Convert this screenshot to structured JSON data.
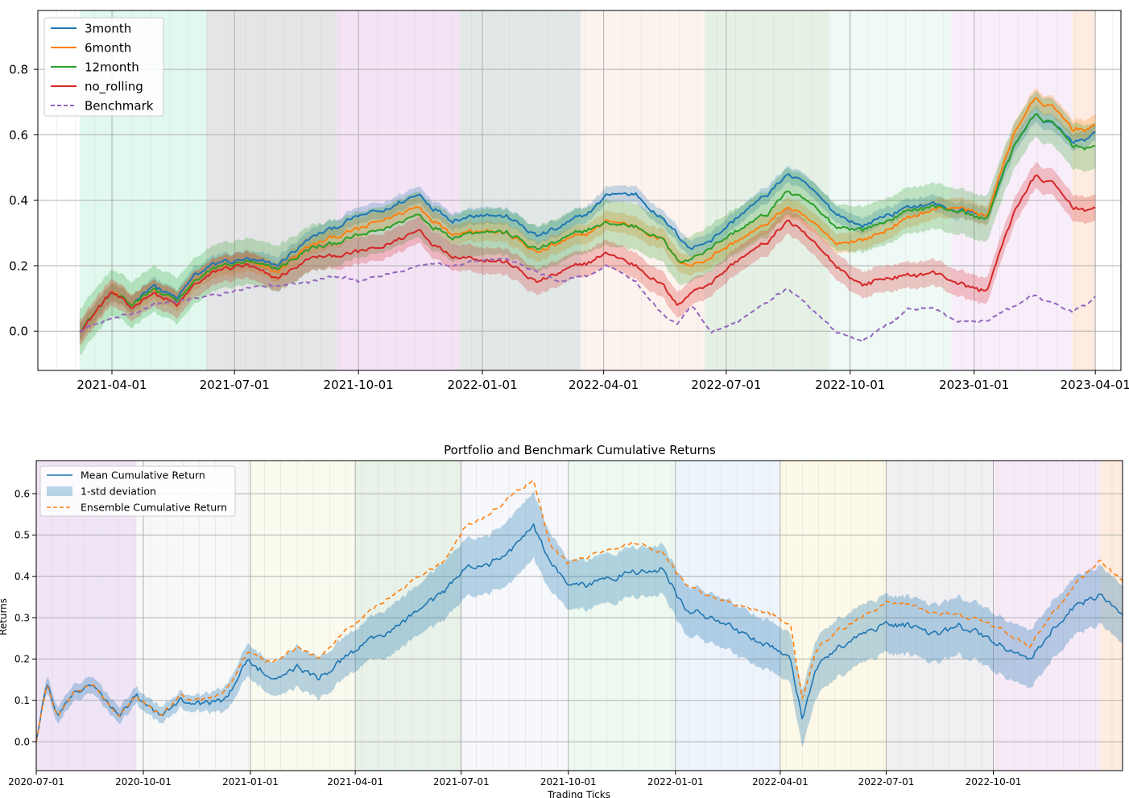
{
  "chart_data": [
    {
      "type": "line",
      "title": "",
      "xlabel": "",
      "ylabel": "",
      "x_range": [
        "2021-02-05",
        "2023-04-20"
      ],
      "ylim": [
        -0.12,
        0.98
      ],
      "x_ticks": [
        "2021-04-01",
        "2021-07-01",
        "2021-10-01",
        "2022-01-01",
        "2022-04-01",
        "2022-07-01",
        "2022-10-01",
        "2023-01-01",
        "2023-04-01"
      ],
      "y_ticks": [
        0.0,
        0.2,
        0.4,
        0.6,
        0.8
      ],
      "y_tick_labels": [
        "0.0",
        "0.2",
        "0.4",
        "0.6",
        "0.8"
      ],
      "grid": true,
      "legend_position": "top-left",
      "x_anchor_dates": [
        "2021-03-08",
        "2021-04-01",
        "2021-04-15",
        "2021-05-01",
        "2021-05-20",
        "2021-06-01",
        "2021-06-20",
        "2021-07-10",
        "2021-08-01",
        "2021-08-25",
        "2021-09-15",
        "2021-10-01",
        "2021-10-20",
        "2021-11-15",
        "2021-11-25",
        "2021-12-10",
        "2022-01-01",
        "2022-01-20",
        "2022-02-10",
        "2022-03-01",
        "2022-03-20",
        "2022-04-05",
        "2022-04-25",
        "2022-05-15",
        "2022-05-25",
        "2022-06-05",
        "2022-06-20",
        "2022-07-10",
        "2022-08-01",
        "2022-08-15",
        "2022-09-01",
        "2022-09-20",
        "2022-10-10",
        "2022-10-25",
        "2022-11-15",
        "2022-12-01",
        "2022-12-20",
        "2023-01-10",
        "2023-02-01",
        "2023-02-15",
        "2023-03-01",
        "2023-03-15",
        "2023-04-01"
      ],
      "series": [
        {
          "name": "3month",
          "color": "#1f77b4",
          "dashed": false,
          "band": 0.025,
          "values": [
            0.0,
            0.12,
            0.08,
            0.14,
            0.1,
            0.17,
            0.21,
            0.22,
            0.2,
            0.28,
            0.32,
            0.35,
            0.37,
            0.42,
            0.38,
            0.34,
            0.36,
            0.35,
            0.29,
            0.32,
            0.36,
            0.42,
            0.42,
            0.34,
            0.3,
            0.25,
            0.28,
            0.35,
            0.42,
            0.48,
            0.44,
            0.36,
            0.32,
            0.35,
            0.38,
            0.39,
            0.37,
            0.35,
            0.58,
            0.66,
            0.63,
            0.58,
            0.6
          ]
        },
        {
          "name": "6month",
          "color": "#ff7f0e",
          "dashed": false,
          "band": 0.03,
          "values": [
            0.0,
            0.12,
            0.08,
            0.13,
            0.09,
            0.15,
            0.2,
            0.21,
            0.18,
            0.26,
            0.29,
            0.31,
            0.34,
            0.38,
            0.34,
            0.3,
            0.31,
            0.3,
            0.24,
            0.27,
            0.3,
            0.34,
            0.32,
            0.28,
            0.22,
            0.2,
            0.23,
            0.28,
            0.33,
            0.38,
            0.34,
            0.27,
            0.28,
            0.3,
            0.35,
            0.37,
            0.38,
            0.35,
            0.62,
            0.71,
            0.68,
            0.62,
            0.62
          ]
        },
        {
          "name": "12month",
          "color": "#2ca02c",
          "dashed": false,
          "band": 0.07,
          "values": [
            0.0,
            0.12,
            0.08,
            0.13,
            0.09,
            0.15,
            0.2,
            0.21,
            0.19,
            0.25,
            0.27,
            0.29,
            0.31,
            0.36,
            0.32,
            0.29,
            0.31,
            0.3,
            0.25,
            0.28,
            0.31,
            0.33,
            0.32,
            0.28,
            0.22,
            0.22,
            0.26,
            0.31,
            0.36,
            0.43,
            0.39,
            0.32,
            0.31,
            0.33,
            0.37,
            0.38,
            0.37,
            0.34,
            0.58,
            0.66,
            0.63,
            0.57,
            0.56
          ]
        },
        {
          "name": "no_rolling",
          "color": "#d62728",
          "dashed": false,
          "band": 0.04,
          "values": [
            0.0,
            0.12,
            0.07,
            0.12,
            0.08,
            0.14,
            0.19,
            0.2,
            0.16,
            0.22,
            0.23,
            0.24,
            0.26,
            0.31,
            0.27,
            0.23,
            0.22,
            0.21,
            0.15,
            0.18,
            0.21,
            0.24,
            0.2,
            0.14,
            0.08,
            0.12,
            0.15,
            0.22,
            0.27,
            0.34,
            0.28,
            0.2,
            0.14,
            0.16,
            0.17,
            0.18,
            0.15,
            0.12,
            0.38,
            0.47,
            0.45,
            0.38,
            0.37
          ]
        },
        {
          "name": "Benchmark",
          "color": "#9467bd",
          "dashed": true,
          "band": 0,
          "values": [
            0.0,
            0.04,
            0.05,
            0.08,
            0.09,
            0.1,
            0.11,
            0.13,
            0.14,
            0.15,
            0.17,
            0.15,
            0.17,
            0.2,
            0.21,
            0.2,
            0.22,
            0.22,
            0.18,
            0.15,
            0.17,
            0.2,
            0.15,
            0.05,
            0.02,
            0.08,
            0.0,
            0.03,
            0.09,
            0.13,
            0.07,
            0.0,
            -0.03,
            0.01,
            0.07,
            0.07,
            0.03,
            0.03,
            0.08,
            0.11,
            0.08,
            0.06,
            0.1
          ]
        }
      ]
    },
    {
      "type": "line",
      "title": "Portfolio and Benchmark Cumulative Returns",
      "xlabel": "Trading Ticks",
      "ylabel": "Returns",
      "x_range": [
        "2020-07-01",
        "2023-01-20"
      ],
      "ylim": [
        -0.07,
        0.68
      ],
      "x_ticks": [
        "2020-07-01",
        "2020-10-01",
        "2021-01-01",
        "2021-04-01",
        "2021-07-01",
        "2021-10-01",
        "2022-01-01",
        "2022-04-01",
        "2022-07-01",
        "2022-10-01"
      ],
      "y_ticks": [
        0.0,
        0.1,
        0.2,
        0.3,
        0.4,
        0.5,
        0.6
      ],
      "y_tick_labels": [
        "0.0",
        "0.1",
        "0.2",
        "0.3",
        "0.4",
        "0.5",
        "0.6"
      ],
      "grid": true,
      "legend_position": "top-left",
      "x_anchor_dates": [
        "2020-07-01",
        "2020-07-10",
        "2020-07-20",
        "2020-08-01",
        "2020-08-20",
        "2020-09-10",
        "2020-09-25",
        "2020-10-15",
        "2020-11-01",
        "2020-11-20",
        "2020-12-10",
        "2020-12-31",
        "2021-01-20",
        "2021-02-10",
        "2021-03-01",
        "2021-03-20",
        "2021-04-10",
        "2021-05-01",
        "2021-05-25",
        "2021-06-15",
        "2021-07-05",
        "2021-07-25",
        "2021-08-15",
        "2021-09-01",
        "2021-09-15",
        "2021-10-01",
        "2021-10-20",
        "2021-11-10",
        "2021-12-01",
        "2021-12-20",
        "2022-01-10",
        "2022-02-01",
        "2022-02-20",
        "2022-03-10",
        "2022-03-25",
        "2022-04-10",
        "2022-04-20",
        "2022-05-01",
        "2022-05-20",
        "2022-06-10",
        "2022-07-01",
        "2022-07-20",
        "2022-08-10",
        "2022-09-01",
        "2022-09-20",
        "2022-10-10",
        "2022-11-01",
        "2022-11-20",
        "2022-12-10",
        "2023-01-01",
        "2023-01-20"
      ],
      "series": [
        {
          "name": "Mean Cumulative Return",
          "color": "#1f77b4",
          "dashed": false,
          "values": [
            0.0,
            0.14,
            0.06,
            0.12,
            0.14,
            0.06,
            0.11,
            0.06,
            0.1,
            0.09,
            0.1,
            0.2,
            0.15,
            0.18,
            0.15,
            0.2,
            0.24,
            0.27,
            0.32,
            0.36,
            0.42,
            0.43,
            0.47,
            0.52,
            0.44,
            0.38,
            0.38,
            0.4,
            0.41,
            0.42,
            0.32,
            0.3,
            0.27,
            0.25,
            0.23,
            0.2,
            0.05,
            0.18,
            0.23,
            0.26,
            0.29,
            0.28,
            0.26,
            0.28,
            0.26,
            0.23,
            0.2,
            0.27,
            0.33,
            0.36,
            0.31
          ]
        },
        {
          "name": "1-std deviation",
          "color": "#1f77b4",
          "dashed": false,
          "band_only": true,
          "values": [
            0.0,
            0.02,
            0.02,
            0.02,
            0.02,
            0.02,
            0.02,
            0.02,
            0.02,
            0.02,
            0.03,
            0.04,
            0.04,
            0.05,
            0.05,
            0.05,
            0.05,
            0.06,
            0.06,
            0.07,
            0.07,
            0.07,
            0.08,
            0.08,
            0.07,
            0.06,
            0.06,
            0.06,
            0.06,
            0.06,
            0.06,
            0.06,
            0.06,
            0.06,
            0.06,
            0.06,
            0.07,
            0.07,
            0.07,
            0.07,
            0.07,
            0.07,
            0.07,
            0.07,
            0.07,
            0.07,
            0.07,
            0.07,
            0.07,
            0.07,
            0.07
          ]
        },
        {
          "name": "Ensemble Cumulative Return",
          "color": "#ff7f0e",
          "dashed": true,
          "values": [
            0.0,
            0.14,
            0.06,
            0.12,
            0.14,
            0.06,
            0.11,
            0.06,
            0.11,
            0.1,
            0.12,
            0.22,
            0.19,
            0.23,
            0.2,
            0.26,
            0.31,
            0.35,
            0.4,
            0.43,
            0.52,
            0.55,
            0.6,
            0.63,
            0.48,
            0.43,
            0.45,
            0.47,
            0.48,
            0.46,
            0.38,
            0.35,
            0.33,
            0.32,
            0.31,
            0.28,
            0.1,
            0.22,
            0.27,
            0.3,
            0.34,
            0.33,
            0.31,
            0.31,
            0.29,
            0.27,
            0.23,
            0.31,
            0.38,
            0.44,
            0.39
          ]
        }
      ]
    }
  ]
}
